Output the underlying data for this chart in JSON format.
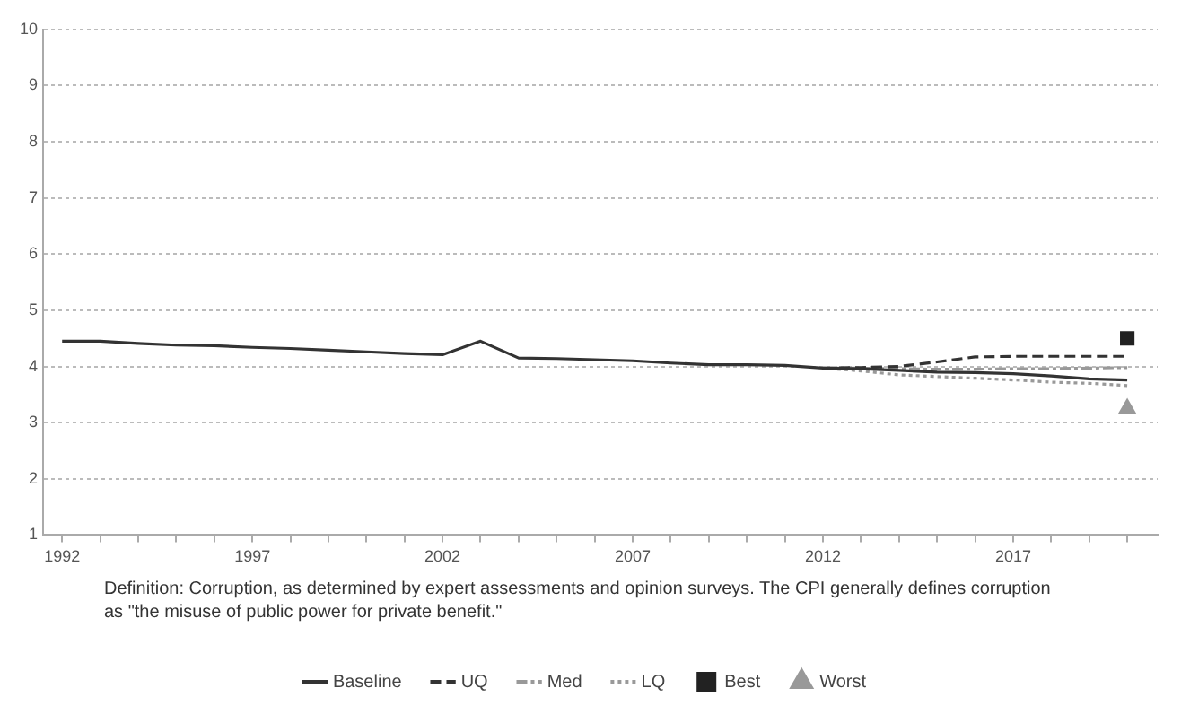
{
  "chart_data": {
    "type": "line",
    "x": [
      1992,
      1993,
      1994,
      1995,
      1996,
      1997,
      1998,
      1999,
      2000,
      2001,
      2002,
      2003,
      2004,
      2005,
      2006,
      2007,
      2008,
      2009,
      2010,
      2011,
      2012,
      2013,
      2014,
      2015,
      2016,
      2017,
      2018,
      2019,
      2020
    ],
    "series": [
      {
        "name": "Baseline",
        "color": "#333333",
        "line_style": "solid",
        "values": [
          4.45,
          4.45,
          4.41,
          4.38,
          4.37,
          4.34,
          4.32,
          4.29,
          4.26,
          4.23,
          4.21,
          4.45,
          4.15,
          4.14,
          4.12,
          4.1,
          4.06,
          4.03,
          4.03,
          4.02,
          3.97,
          3.96,
          3.93,
          3.9,
          3.89,
          3.87,
          3.83,
          3.78,
          3.76
        ]
      },
      {
        "name": "UQ",
        "color": "#333333",
        "line_style": "dashed",
        "x": [
          2012,
          2013,
          2014,
          2015,
          2016,
          2017,
          2018,
          2019,
          2020
        ],
        "values": [
          3.97,
          3.98,
          4.0,
          4.08,
          4.17,
          4.18,
          4.18,
          4.18,
          4.18
        ]
      },
      {
        "name": "Med",
        "color": "#999999",
        "line_style": "dashdot",
        "x": [
          2012,
          2013,
          2014,
          2015,
          2016,
          2017,
          2018,
          2019,
          2020
        ],
        "values": [
          3.97,
          3.97,
          3.96,
          3.95,
          3.95,
          3.96,
          3.96,
          3.97,
          3.98
        ]
      },
      {
        "name": "LQ",
        "color": "#999999",
        "line_style": "dotted",
        "x": [
          2012,
          2013,
          2014,
          2015,
          2016,
          2017,
          2018,
          2019,
          2020
        ],
        "values": [
          3.97,
          3.92,
          3.85,
          3.82,
          3.79,
          3.76,
          3.72,
          3.7,
          3.66
        ]
      },
      {
        "name": "Best",
        "type": "scatter",
        "marker": "square",
        "color": "#222222",
        "x": [
          2020
        ],
        "values": [
          4.5
        ]
      },
      {
        "name": "Worst",
        "type": "scatter",
        "marker": "triangle",
        "color": "#999999",
        "x": [
          2020
        ],
        "values": [
          3.25
        ]
      }
    ],
    "xlim": [
      1991.5,
      2020.8
    ],
    "xticks": [
      1992,
      {
        "value": 1993,
        "label": null
      },
      {
        "value": 1994,
        "label": null
      },
      {
        "value": 1995,
        "label": null
      },
      {
        "value": 1996,
        "label": null
      },
      1997,
      {
        "value": 1998,
        "label": null
      },
      {
        "value": 1999,
        "label": null
      },
      {
        "value": 2000,
        "label": null
      },
      {
        "value": 2001,
        "label": null
      },
      2002,
      {
        "value": 2003,
        "label": null
      },
      {
        "value": 2004,
        "label": null
      },
      {
        "value": 2005,
        "label": null
      },
      {
        "value": 2006,
        "label": null
      },
      2007,
      {
        "value": 2008,
        "label": null
      },
      {
        "value": 2009,
        "label": null
      },
      {
        "value": 2010,
        "label": null
      },
      {
        "value": 2011,
        "label": null
      },
      2012,
      {
        "value": 2013,
        "label": null
      },
      {
        "value": 2014,
        "label": null
      },
      {
        "value": 2015,
        "label": null
      },
      {
        "value": 2016,
        "label": null
      },
      2017,
      {
        "value": 2018,
        "label": null
      },
      {
        "value": 2019,
        "label": null
      },
      {
        "value": 2020,
        "label": null
      }
    ],
    "ylim": [
      1,
      10
    ],
    "yticks": [
      1,
      2,
      3,
      4,
      5,
      6,
      7,
      8,
      9,
      10
    ],
    "grid": "y",
    "legend": "bottom",
    "annotations": [
      "Definition: Corruption, as determined by expert assessments and opinion surveys. The CPI generally defines corruption as \"the misuse of public power for private benefit.\""
    ]
  }
}
